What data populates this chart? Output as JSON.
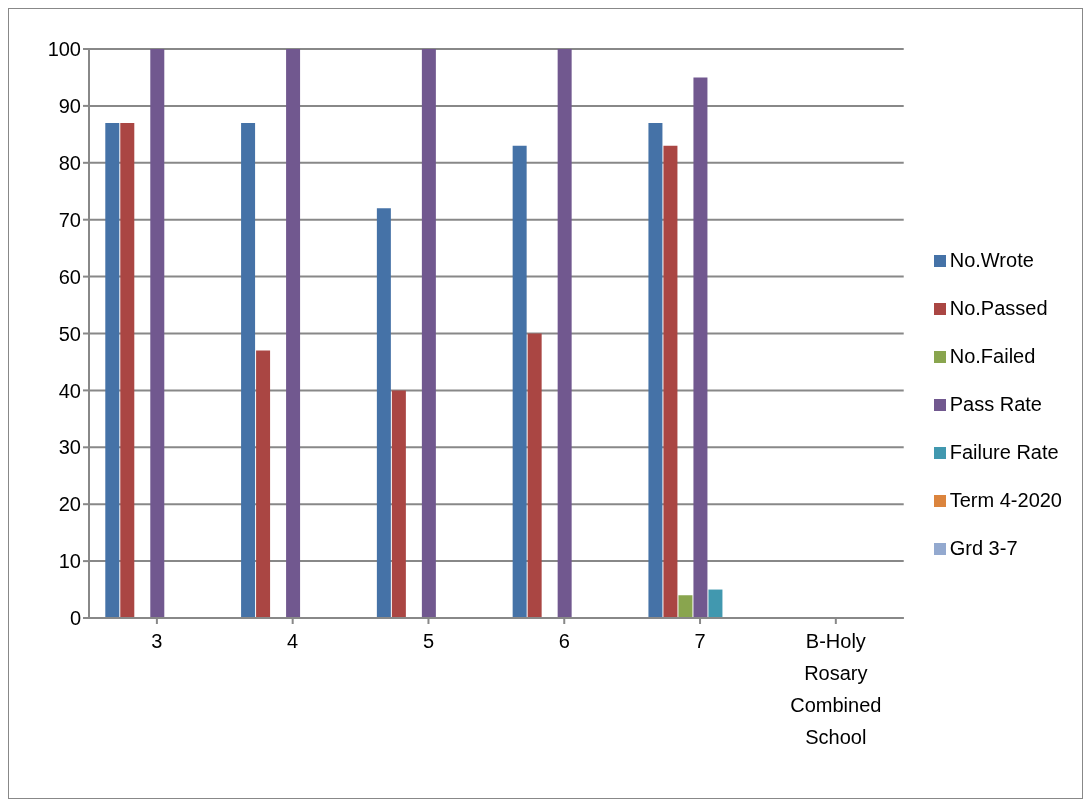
{
  "chart_data": {
    "type": "bar",
    "categories": [
      "3",
      "4",
      "5",
      "6",
      "7",
      "B-Holy Rosary Combined School"
    ],
    "series": [
      {
        "name": "No.Wrote",
        "color": "#4572a7",
        "values": [
          87,
          87,
          72,
          83,
          87,
          null
        ]
      },
      {
        "name": "No.Passed",
        "color": "#aa4643",
        "values": [
          87,
          47,
          40,
          50,
          83,
          null
        ]
      },
      {
        "name": "No.Failed",
        "color": "#89a54e",
        "values": [
          0,
          0,
          0,
          0,
          4,
          null
        ]
      },
      {
        "name": "Pass Rate",
        "color": "#71588f",
        "values": [
          100,
          100,
          100,
          100,
          95,
          null
        ]
      },
      {
        "name": "Failure Rate",
        "color": "#4198af",
        "values": [
          0,
          0,
          0,
          0,
          5,
          null
        ]
      },
      {
        "name": "Term 4-2020",
        "color": "#db843d",
        "values": [
          null,
          null,
          null,
          null,
          null,
          null
        ]
      },
      {
        "name": "Grd 3-7",
        "color": "#93a9cf",
        "values": [
          null,
          null,
          null,
          null,
          null,
          null
        ]
      }
    ],
    "ylim": [
      0,
      100
    ],
    "yticks": [
      0,
      10,
      20,
      30,
      40,
      50,
      60,
      70,
      80,
      90,
      100
    ],
    "grid": "y",
    "legend": "right"
  }
}
